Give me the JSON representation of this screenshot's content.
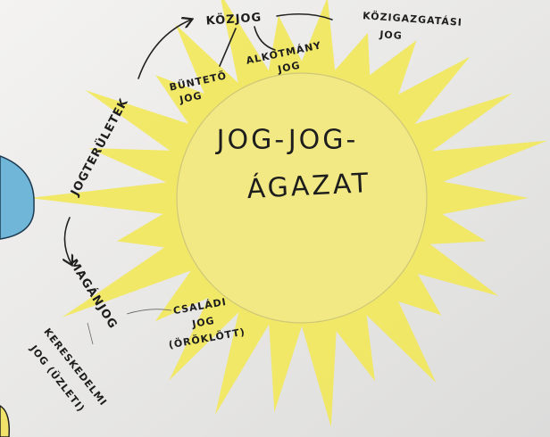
{
  "center": {
    "lines": [
      "JOG-JOG-",
      "ÁGAZAT"
    ]
  },
  "nodes": [
    {
      "lines": [
        "KÖZJOG"
      ]
    },
    {
      "lines": [
        "KÖZIGAZGATÁSI",
        "JOG"
      ]
    },
    {
      "lines": [
        "ALKOTMÁNY",
        "JOG"
      ]
    },
    {
      "lines": [
        "BÜNTETŐ",
        "JOG"
      ]
    },
    {
      "lines": [
        "JOGTERÜLETEK"
      ]
    },
    {
      "lines": [
        "MAGÁNJOG"
      ]
    },
    {
      "lines": [
        "CSALÁDI",
        "JOG",
        "(ÖRÖKLÖTT)"
      ]
    },
    {
      "lines": [
        "KERESKEDELMI",
        "JOG (ÜZLETI)"
      ]
    }
  ]
}
